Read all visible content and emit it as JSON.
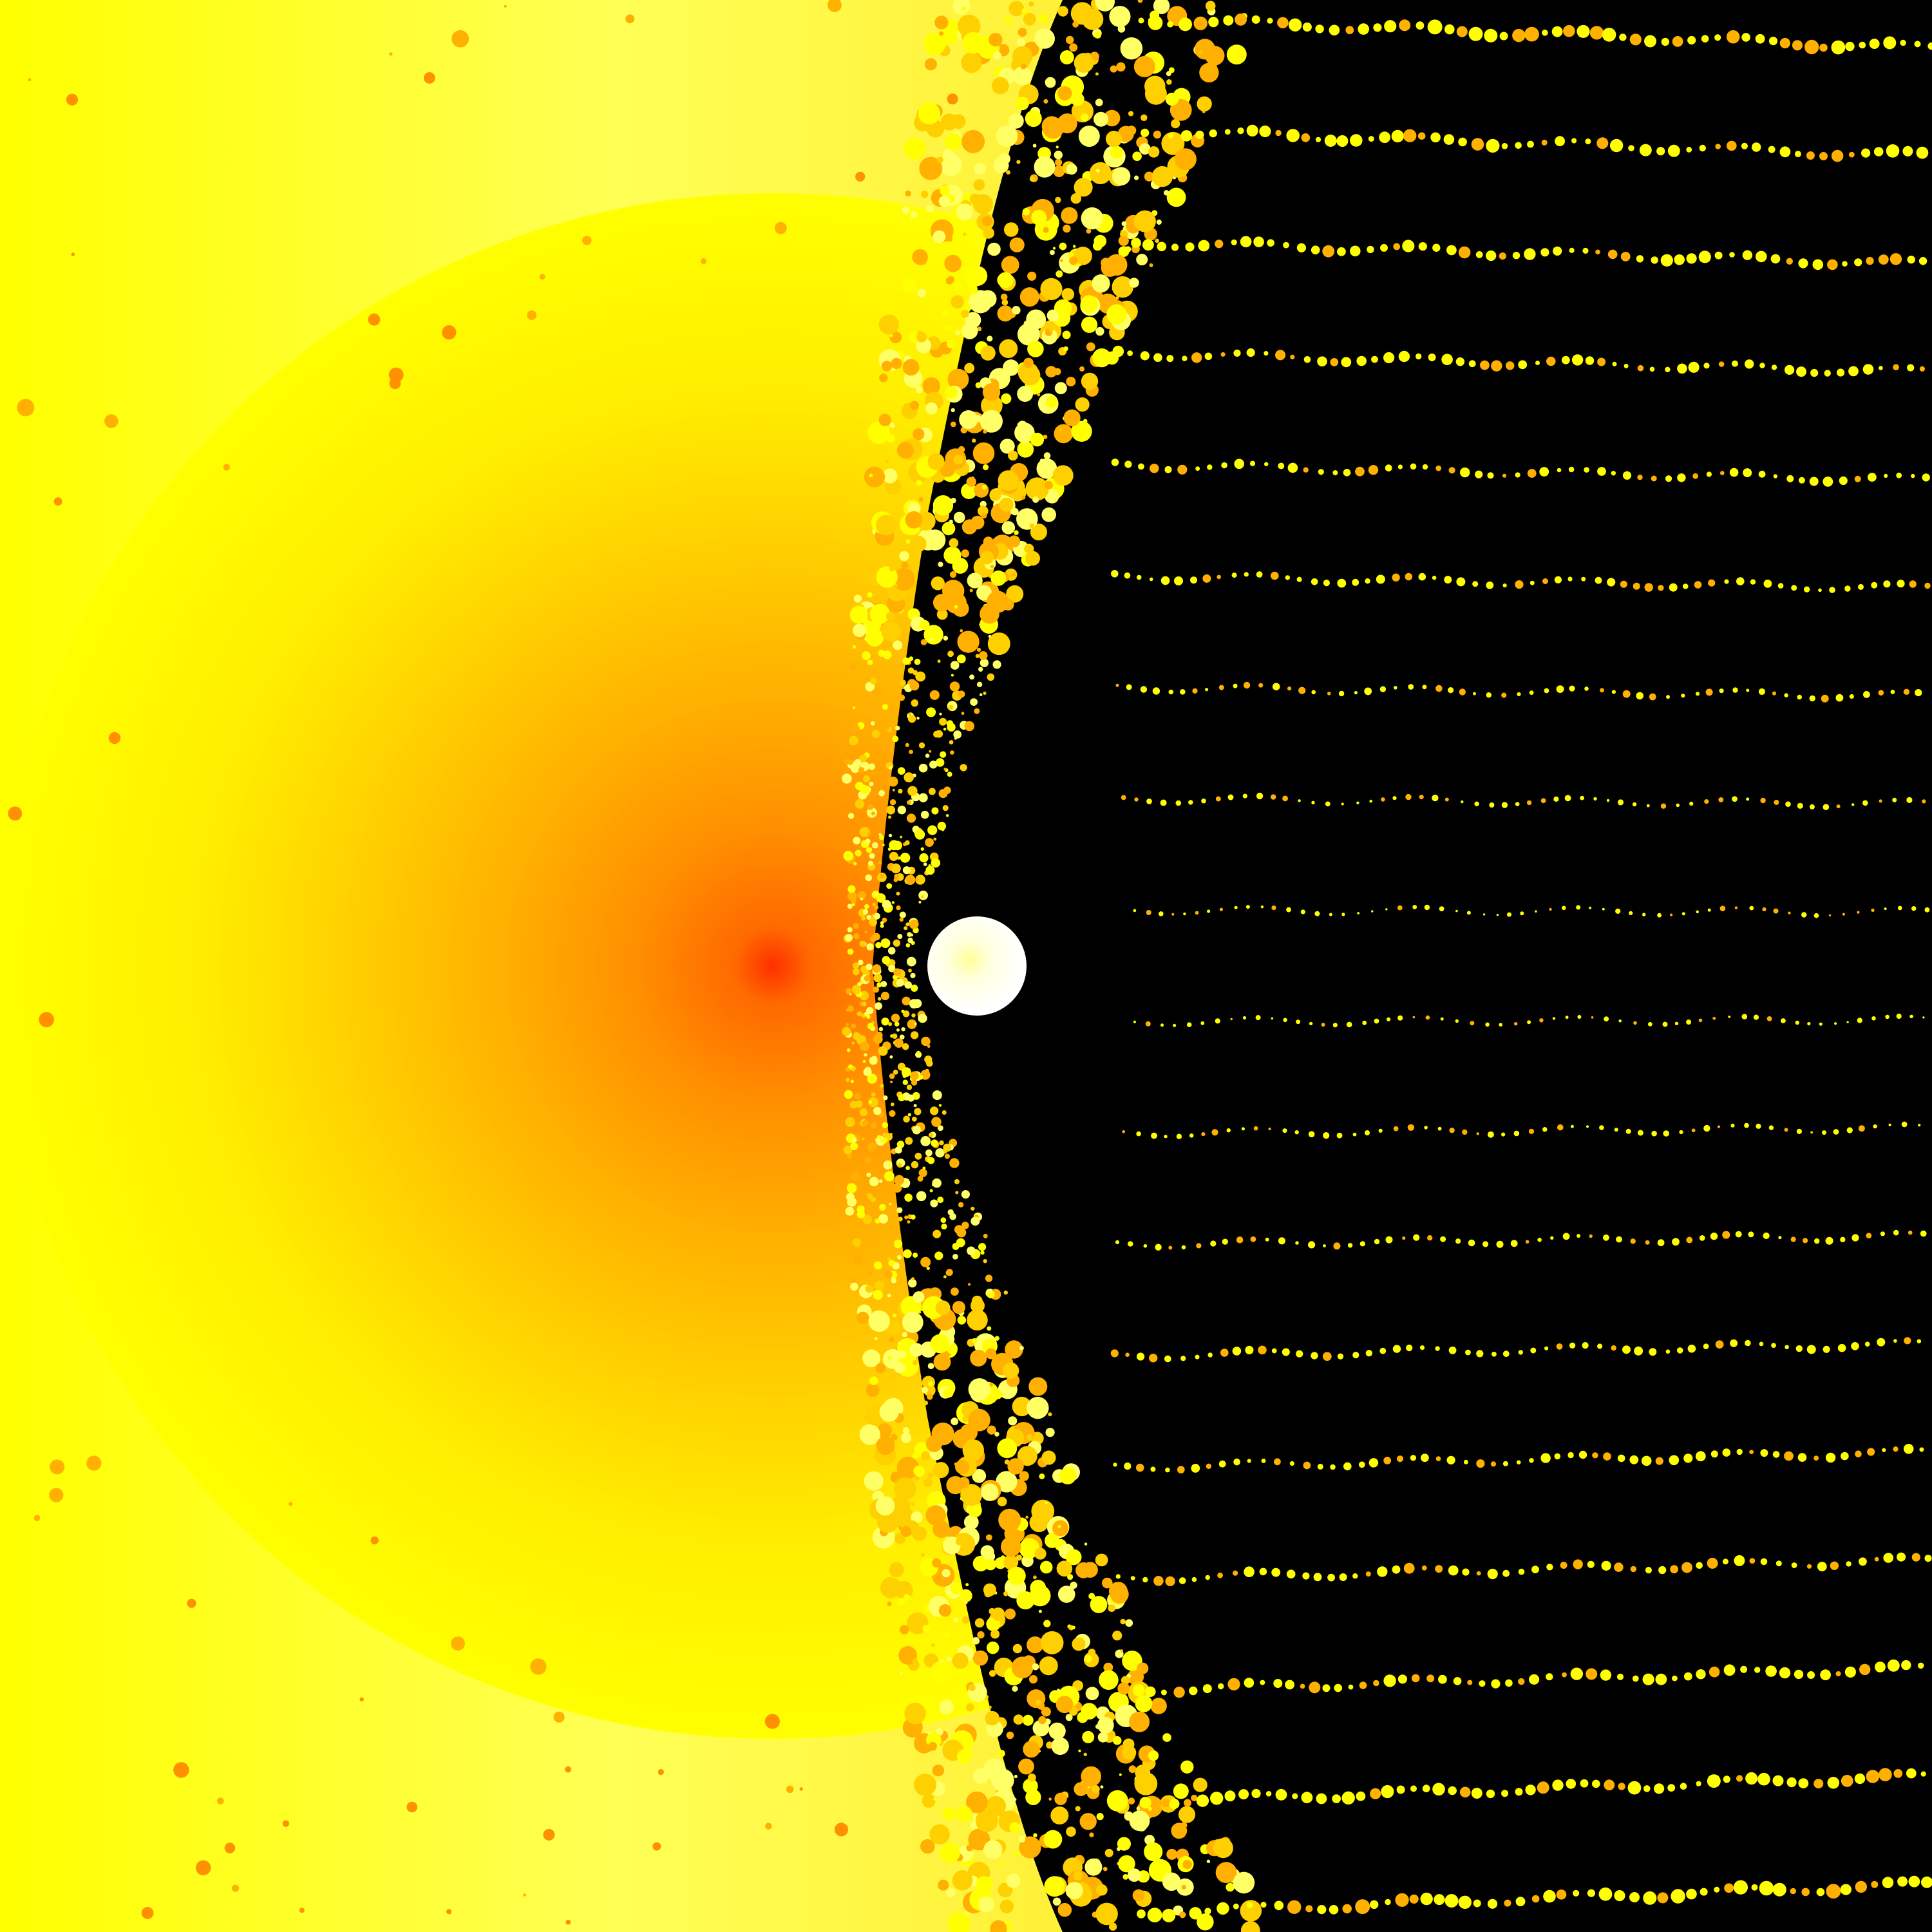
{
  "image": {
    "kind": "fractal-rendering",
    "text_content": "",
    "palette": {
      "background_dark": "#000000",
      "field_yellow": "#ffff00",
      "pale_yellow": "#ffff66",
      "gold": "#ffd000",
      "amber": "#ffb000",
      "orange": "#ff9000",
      "deep_orange": "#ff6a00",
      "core_red": "#ff3000",
      "white_disc": "#ffffff",
      "disc_tint": "#ffffcc"
    },
    "regions": [
      {
        "name": "escape-field-left",
        "color_key": "field_yellow"
      },
      {
        "name": "radial-gradient-attractor",
        "color_key": "deep_orange"
      },
      {
        "name": "turbulent-boundary",
        "color_key": "gold"
      },
      {
        "name": "interior-black-set",
        "color_key": "background_dark"
      },
      {
        "name": "central-white-disc",
        "color_key": "white_disc"
      },
      {
        "name": "dotted-filament-rows",
        "color_key": "field_yellow"
      }
    ],
    "filament_rows": 18
  }
}
